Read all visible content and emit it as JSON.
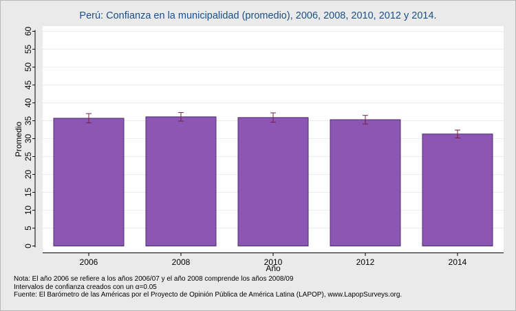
{
  "chart_data": {
    "type": "bar",
    "title": "Perú: Confianza en la municipalidad (promedio), 2006, 2008, 2010, 2012 y 2014.",
    "xlabel": "Año",
    "ylabel": "Promedio",
    "categories": [
      "2006",
      "2008",
      "2010",
      "2012",
      "2014"
    ],
    "values": [
      35.7,
      36.1,
      35.9,
      35.3,
      31.3
    ],
    "ci_low": [
      34.4,
      34.9,
      34.6,
      34.1,
      30.2
    ],
    "ci_high": [
      37.0,
      37.3,
      37.2,
      36.5,
      32.4
    ],
    "ylim": [
      0,
      62
    ],
    "yticks": [
      0,
      5,
      10,
      15,
      20,
      25,
      30,
      35,
      40,
      45,
      50,
      55,
      60
    ],
    "grid": true,
    "legend": "none",
    "colors": {
      "bar_fill": "#8c57b4",
      "bar_stroke": "#4f2b72",
      "error_bar": "#7a1f3a",
      "grid": "#ececec",
      "plot_bg": "#ffffff",
      "title": "#1a4f8a"
    }
  },
  "notes": [
    "Nota: El año 2006 se refiere a los años 2006/07 y el año 2008 comprende los años 2008/09",
    "Intervalos de confianza creados con un α=0.05",
    "Fuente: El Barómetro de las Américas por el Proyecto de Opinión Pública de América Latina (LAPOP), www.LapopSurveys.org."
  ]
}
